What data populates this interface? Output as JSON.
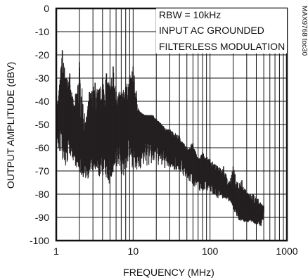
{
  "chart_data": {
    "type": "line",
    "title": "",
    "xlabel": "FREQUENCY (MHz)",
    "ylabel": "OUTPUT AMPLITUDE (dBV)",
    "xscale": "log",
    "xlim": [
      1,
      1000
    ],
    "ylim": [
      -100,
      0
    ],
    "x_ticks": [
      1,
      10,
      100,
      1000
    ],
    "x_tick_labels": [
      "1",
      "10",
      "100",
      "1000"
    ],
    "y_ticks": [
      0,
      -10,
      -20,
      -30,
      -40,
      -50,
      -60,
      -70,
      -80,
      -90,
      -100
    ],
    "y_tick_labels": [
      "0",
      "-10",
      "-20",
      "-30",
      "-40",
      "-50",
      "-60",
      "-70",
      "-80",
      "-90",
      "-100"
    ],
    "grid": true,
    "legend": "none",
    "line_color": "#231f20",
    "annotations": [
      "RBW = 10kHz",
      "INPUT AC GROUNDED",
      "FILTERLESS MODULATION"
    ],
    "figure_code": "MAX9768 toc30",
    "series": [
      {
        "name": "",
        "x": [
          1,
          1.08,
          1.15,
          1.25,
          1.4,
          1.6,
          1.8,
          2,
          2.3,
          2.6,
          3,
          3.5,
          4,
          4.5,
          5,
          5.5,
          6,
          7,
          8,
          9,
          10,
          12,
          14,
          17,
          20,
          24,
          28,
          33,
          40,
          48,
          57,
          68,
          80,
          95,
          110,
          130,
          150,
          175,
          200,
          240,
          280,
          330,
          400,
          450,
          500
        ],
        "y": [
          -45,
          -57,
          -27,
          -50,
          -48,
          -44,
          -60,
          -58,
          -64,
          -50,
          -57,
          -54,
          -54,
          -55,
          -48,
          -50,
          -48,
          -48,
          -47,
          -44,
          -50,
          -48,
          -46,
          -47,
          -49,
          -52,
          -57,
          -57,
          -59,
          -63,
          -64,
          -66,
          -68,
          -69,
          -73,
          -72,
          -77,
          -80,
          -82,
          -85,
          -88,
          -89,
          -89,
          -89,
          -88
        ]
      }
    ],
    "peaks": {
      "x": [
        1.05,
        1.2,
        1.35,
        1.5,
        1.7,
        2.0,
        2.4,
        2.7,
        3.2,
        3.6,
        4.0,
        4.5,
        5.0,
        5.5,
        6.0,
        7.0,
        8.0,
        10,
        12,
        14,
        16,
        18,
        22,
        27,
        30,
        40,
        45,
        50,
        60,
        70,
        80,
        90,
        100,
        125,
        150,
        175,
        200,
        230,
        260,
        290,
        320,
        360,
        420,
        500
      ],
      "y": [
        -40,
        -18,
        -30,
        -28,
        -42,
        -23,
        -49,
        -36,
        -32,
        -35,
        -30,
        -28,
        -32,
        -25,
        -36,
        -36,
        -34,
        -25,
        -44,
        -46,
        -46,
        -46,
        -49,
        -52,
        -52,
        -55,
        -58,
        -60,
        -58,
        -65,
        -62,
        -64,
        -65,
        -68,
        -68,
        -75,
        -68,
        -75,
        -74,
        -78,
        -80,
        -80,
        -82,
        -85
      ]
    },
    "troughs": {
      "x": [
        1.0,
        1.1,
        1.3,
        1.5,
        1.8,
        2.1,
        2.5,
        3.0,
        3.5,
        4.2,
        4.8,
        5.5,
        6.5,
        7.5,
        9.0,
        11,
        13,
        16,
        20,
        24,
        30,
        40,
        50,
        60,
        75,
        90,
        110,
        130,
        160,
        190,
        230,
        280,
        340,
        400,
        460,
        500
      ],
      "y": [
        -55,
        -62,
        -70,
        -63,
        -68,
        -72,
        -74,
        -70,
        -73,
        -72,
        -76,
        -74,
        -68,
        -73,
        -66,
        -72,
        -68,
        -68,
        -67,
        -69,
        -69,
        -70,
        -74,
        -76,
        -79,
        -78,
        -80,
        -82,
        -82,
        -84,
        -91,
        -92,
        -92,
        -93,
        -94,
        -90
      ]
    }
  }
}
